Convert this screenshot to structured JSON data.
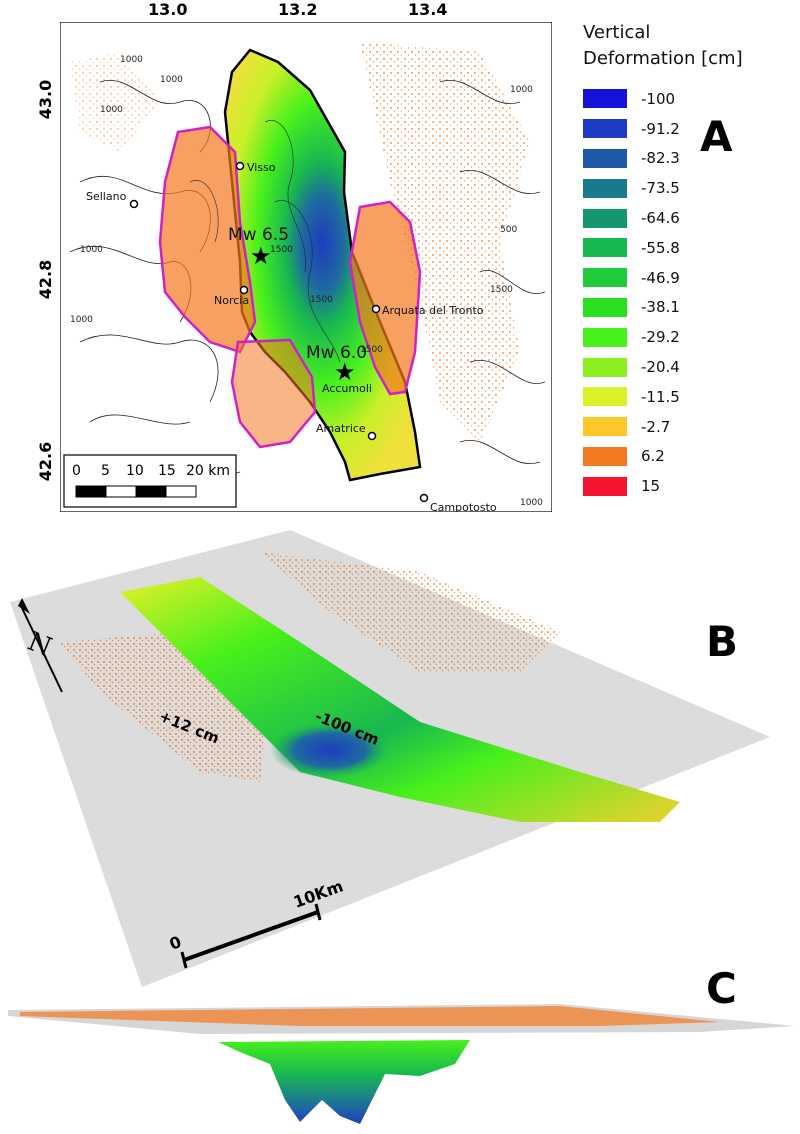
{
  "panel_labels": [
    "A",
    "B",
    "C"
  ],
  "map": {
    "lon_ticks": [
      "13.0",
      "13.2",
      "13.4"
    ],
    "lat_ticks": [
      "43.0",
      "42.8",
      "42.6"
    ],
    "places": [
      {
        "name": "Visso"
      },
      {
        "name": "Sellano"
      },
      {
        "name": "Norcia"
      },
      {
        "name": "Arquata del Tronto"
      },
      {
        "name": "Accumoli"
      },
      {
        "name": "Amatrice"
      },
      {
        "name": "Campotosto"
      }
    ],
    "earthquakes": [
      {
        "label": "Mw 6.5"
      },
      {
        "label": "Mw 6.0"
      }
    ],
    "contour_labels": [
      "1000",
      "1000",
      "1000",
      "1000",
      "1500",
      "1500",
      "1500",
      "1500",
      "1000",
      "1000",
      "500",
      "1000"
    ],
    "scale_bar": {
      "ticks": [
        "0",
        "5",
        "10",
        "15",
        "20 km"
      ]
    },
    "colors": {
      "deformation_zone_outline": "#000000",
      "uplift_zone_outline": "#d020c8",
      "contours": "#222222"
    }
  },
  "legend": {
    "title_line1": "Vertical",
    "title_line2": "Deformation [cm]",
    "items": [
      {
        "label": "-100",
        "color": "#1414d8"
      },
      {
        "label": "-91.2",
        "color": "#1c3cc4"
      },
      {
        "label": "-82.3",
        "color": "#1e5aa8"
      },
      {
        "label": "-73.5",
        "color": "#1a7a8c"
      },
      {
        "label": "-64.6",
        "color": "#14966e"
      },
      {
        "label": "-55.8",
        "color": "#18b850"
      },
      {
        "label": "-46.9",
        "color": "#20cc3c"
      },
      {
        "label": "-38.1",
        "color": "#28e020"
      },
      {
        "label": "-29.2",
        "color": "#48f01c"
      },
      {
        "label": "-20.4",
        "color": "#8cf020"
      },
      {
        "label": "-11.5",
        "color": "#dcf028"
      },
      {
        "label": "-2.7",
        "color": "#fcc828"
      },
      {
        "label": "6.2",
        "color": "#f47820"
      },
      {
        "label": "15",
        "color": "#f41430"
      }
    ]
  },
  "view3d": {
    "uplift_label": "+12 cm",
    "subsidence_label": "-100 cm",
    "scale_start": "0",
    "scale_end": "10Km",
    "north_label": "N"
  }
}
